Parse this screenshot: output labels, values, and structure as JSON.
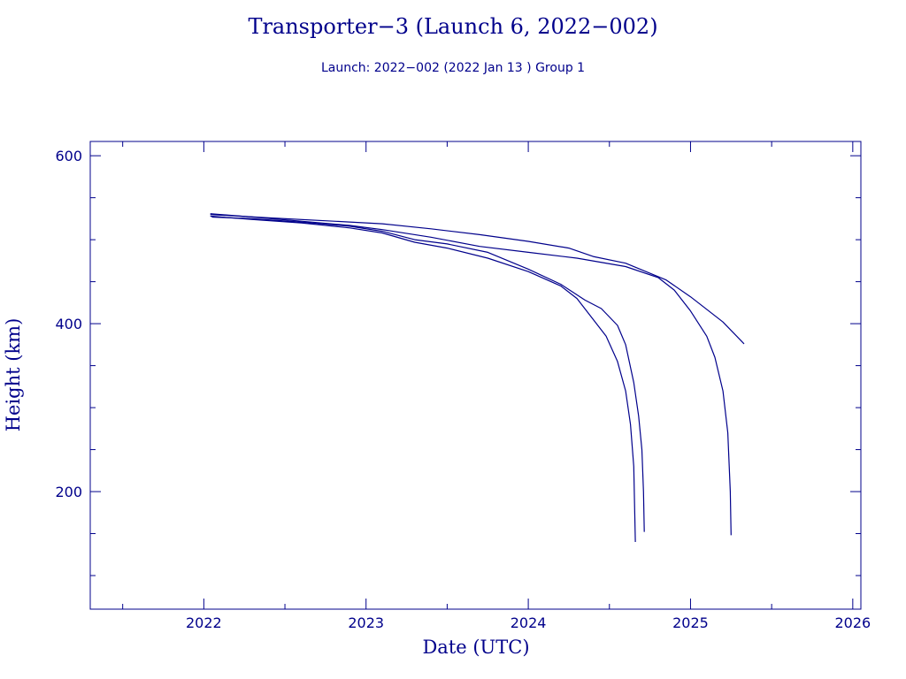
{
  "chart_data": {
    "type": "line",
    "title": "Transporter−3 (Launch 6, 2022−002)",
    "subtitle": "Launch: 2022−002  (2022 Jan 13 )  Group 1",
    "xlabel": "Date (UTC)",
    "ylabel": "Height (km)",
    "xlim": [
      2021.3,
      2026.05
    ],
    "ylim": [
      60,
      617
    ],
    "x_major_ticks": [
      2022,
      2023,
      2024,
      2025,
      2026
    ],
    "x_tick_labels": [
      "2022",
      "2023",
      "2024",
      "2025",
      "2026"
    ],
    "x_minor_step": 0.5,
    "y_major_ticks": [
      200,
      400,
      600
    ],
    "y_tick_labels": [
      "200",
      "400",
      "600"
    ],
    "y_minor_step": 50,
    "grid": false,
    "color": "#00008b",
    "series": [
      {
        "x": [
          2022.04,
          2022.3,
          2022.6,
          2022.9,
          2023.1,
          2023.3,
          2023.5,
          2023.75,
          2024.0,
          2024.2,
          2024.3,
          2024.4,
          2024.48,
          2024.55,
          2024.6,
          2024.63,
          2024.65,
          2024.655,
          2024.66
        ],
        "y": [
          528,
          524,
          520,
          514,
          508,
          497,
          490,
          478,
          462,
          445,
          430,
          405,
          385,
          355,
          320,
          280,
          230,
          185,
          140
        ]
      },
      {
        "x": [
          2022.05,
          2022.3,
          2022.6,
          2022.9,
          2023.1,
          2023.3,
          2023.5,
          2023.75,
          2024.0,
          2024.2,
          2024.35,
          2024.45,
          2024.55,
          2024.6,
          2024.65,
          2024.68,
          2024.7,
          2024.71,
          2024.715
        ],
        "y": [
          527,
          525,
          521,
          516,
          510,
          500,
          495,
          485,
          465,
          447,
          428,
          418,
          398,
          375,
          330,
          290,
          250,
          200,
          152
        ]
      },
      {
        "x": [
          2022.04,
          2022.3,
          2022.6,
          2022.9,
          2023.1,
          2023.4,
          2023.7,
          2024.0,
          2024.3,
          2024.6,
          2024.8,
          2024.9,
          2025.0,
          2025.1,
          2025.15,
          2025.2,
          2025.23,
          2025.245,
          2025.25
        ],
        "y": [
          531,
          527,
          522,
          517,
          512,
          503,
          492,
          485,
          478,
          468,
          455,
          440,
          415,
          385,
          360,
          320,
          270,
          200,
          148
        ]
      },
      {
        "x": [
          2022.04,
          2022.4,
          2022.8,
          2023.1,
          2023.4,
          2023.7,
          2024.0,
          2024.25,
          2024.4,
          2024.6,
          2024.85,
          2025.0,
          2025.2,
          2025.33
        ],
        "y": [
          530,
          526,
          522,
          519,
          513,
          506,
          498,
          490,
          480,
          472,
          452,
          432,
          402,
          376
        ]
      }
    ]
  }
}
